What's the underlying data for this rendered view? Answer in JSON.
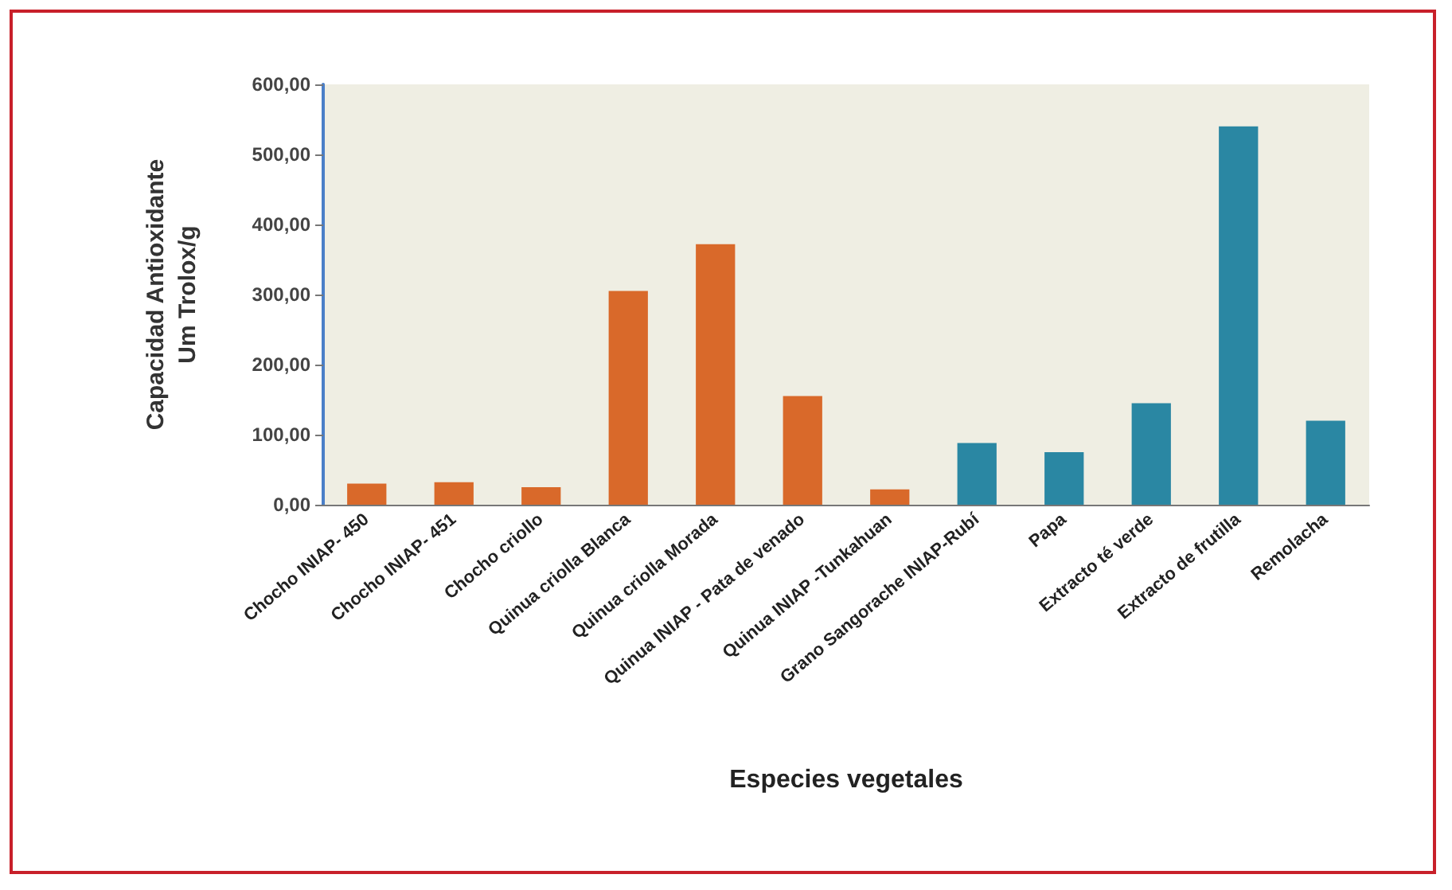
{
  "chart_data": {
    "type": "bar",
    "categories": [
      "Chocho INIAP- 450",
      "Chocho INIAP- 451",
      "Chocho criollo",
      "Quinua criolla Blanca",
      "Quinua criolla Morada",
      "Quinua INIAP - Pata de venado",
      "Quinua INIAP -Tunkahuan",
      "Grano Sangorache INIAP-Rubí",
      "Papa",
      "Extracto té verde",
      "Extracto de frutilla",
      "Remolacha"
    ],
    "values": [
      30,
      32,
      25,
      305,
      372,
      155,
      22,
      88,
      75,
      145,
      540,
      120
    ],
    "colors": [
      "#d9692a",
      "#d9692a",
      "#d9692a",
      "#d9692a",
      "#d9692a",
      "#d9692a",
      "#d9692a",
      "#2a87a3",
      "#2a87a3",
      "#2a87a3",
      "#2a87a3",
      "#2a87a3"
    ],
    "xlabel": "Especies vegetales",
    "ylabel": "Capacidad Antioxidante\nUm Trolox/g",
    "ylim": [
      0,
      600
    ],
    "yticks": [
      {
        "value": 0,
        "label": "0,00"
      },
      {
        "value": 100,
        "label": "100,00"
      },
      {
        "value": 200,
        "label": "200,00"
      },
      {
        "value": 300,
        "label": "300,00"
      },
      {
        "value": 400,
        "label": "400,00"
      },
      {
        "value": 500,
        "label": "500,00"
      },
      {
        "value": 600,
        "label": "600,00"
      }
    ],
    "grid": false
  }
}
